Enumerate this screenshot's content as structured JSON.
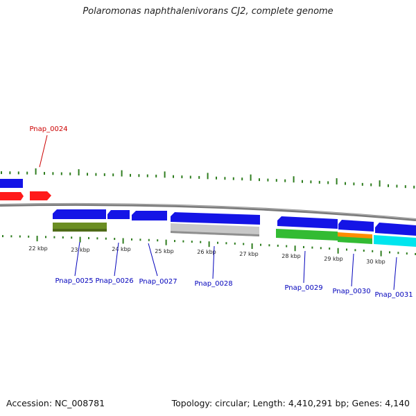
{
  "title": "Polaromonas naphthalenivorans CJ2, complete genome",
  "footer": {
    "accession": "Accession: NC_008781",
    "summary": "Topology: circular; Length: 4,410,291 bp; Genes: 4,140"
  },
  "colors": {
    "backbone": "#888888",
    "tick": "#2e7d1e",
    "label_reverse": "#cc0000",
    "label_forward": "#0000bb",
    "cds_blue": "#1414e6",
    "cds_red": "#ff1a1a",
    "feature_olive": "#6b8e23",
    "feature_gray": "#c0c0c0",
    "feature_green": "#33bb33",
    "feature_orange": "#ff8c00",
    "feature_cyan": "#00e5ee"
  },
  "scale_labels": [
    "22 kbp",
    "23 kbp",
    "24 kbp",
    "25 kbp",
    "26 kbp",
    "27 kbp",
    "28 kbp",
    "29 kbp",
    "30 kbp"
  ],
  "genes": [
    {
      "id": "g0024",
      "label": "Pnap_0024",
      "color": "label_reverse"
    },
    {
      "id": "g0025",
      "label": "Pnap_0025",
      "color": "label_forward"
    },
    {
      "id": "g0026",
      "label": "Pnap_0026",
      "color": "label_forward"
    },
    {
      "id": "g0027",
      "label": "Pnap_0027",
      "color": "label_forward"
    },
    {
      "id": "g0028",
      "label": "Pnap_0028",
      "color": "label_forward"
    },
    {
      "id": "g0029",
      "label": "Pnap_0029",
      "color": "label_forward"
    },
    {
      "id": "g0030",
      "label": "Pnap_0030",
      "color": "label_forward"
    },
    {
      "id": "g0031",
      "label": "Pnap_0031",
      "color": "label_forward"
    }
  ]
}
